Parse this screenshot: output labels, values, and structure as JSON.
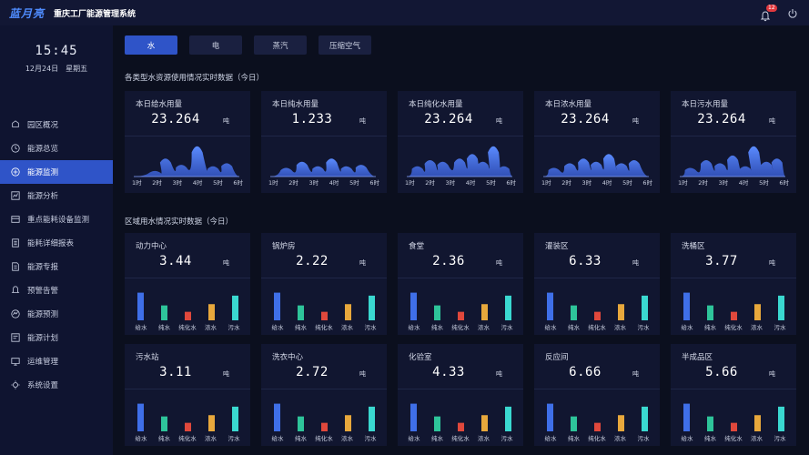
{
  "header": {
    "logo": "蓝月亮",
    "title": "重庆工厂能源管理系统",
    "notifications": "12",
    "icons": [
      "bell-icon",
      "power-icon"
    ]
  },
  "clock": {
    "time": "15:45",
    "date": "12月24日",
    "weekday": "星期五"
  },
  "sidebar": {
    "items": [
      {
        "label": "园区概况",
        "icon": "building-icon"
      },
      {
        "label": "能源总览",
        "icon": "overview-icon"
      },
      {
        "label": "能源监测",
        "icon": "monitor-icon",
        "active": true
      },
      {
        "label": "能源分析",
        "icon": "analysis-icon"
      },
      {
        "label": "重点能耗设备监测",
        "icon": "device-icon"
      },
      {
        "label": "能耗详细报表",
        "icon": "report-icon"
      },
      {
        "label": "能源专报",
        "icon": "document-icon"
      },
      {
        "label": "预警告警",
        "icon": "alarm-icon"
      },
      {
        "label": "能源预测",
        "icon": "forecast-icon"
      },
      {
        "label": "能源计划",
        "icon": "plan-icon"
      },
      {
        "label": "运维管理",
        "icon": "maintenance-icon"
      },
      {
        "label": "系统设置",
        "icon": "settings-icon"
      }
    ]
  },
  "tabs": [
    {
      "label": "水",
      "active": true
    },
    {
      "label": "电"
    },
    {
      "label": "蒸汽"
    },
    {
      "label": "压缩空气"
    }
  ],
  "section1": {
    "title": "各类型水资源使用情况实时数据（今日）"
  },
  "section2": {
    "title": "区域用水情况实时数据（今日）"
  },
  "unit": "吨",
  "hours": [
    "1时",
    "2时",
    "3时",
    "4时",
    "5时",
    "6时"
  ],
  "water_types": [
    "给水",
    "纯水",
    "纯化水",
    "浓水",
    "污水"
  ],
  "colors": {
    "accent": "#2f54c8",
    "bar_colors": [
      "#3f6fe8",
      "#2ec49a",
      "#e0483c",
      "#e8a83c",
      "#3ad8d0"
    ]
  },
  "type_cards": [
    {
      "label": "本日给水用量",
      "value": "23.264"
    },
    {
      "label": "本日纯水用量",
      "value": "1.233"
    },
    {
      "label": "本日纯化水用量",
      "value": "23.264"
    },
    {
      "label": "本日浓水用量",
      "value": "23.264"
    },
    {
      "label": "本日污水用量",
      "value": "23.264"
    }
  ],
  "area_cards": [
    {
      "label": "动力中心",
      "value": "3.44",
      "bars": [
        0.65,
        0.35,
        0.2,
        0.38,
        0.58
      ]
    },
    {
      "label": "锅炉房",
      "value": "2.22",
      "bars": [
        0.65,
        0.35,
        0.2,
        0.38,
        0.58
      ]
    },
    {
      "label": "食堂",
      "value": "2.36",
      "bars": [
        0.65,
        0.35,
        0.2,
        0.38,
        0.58
      ]
    },
    {
      "label": "灌装区",
      "value": "6.33",
      "bars": [
        0.65,
        0.35,
        0.2,
        0.38,
        0.58
      ]
    },
    {
      "label": "洗桶区",
      "value": "3.77",
      "bars": [
        0.65,
        0.35,
        0.2,
        0.38,
        0.58
      ]
    },
    {
      "label": "污水站",
      "value": "3.11",
      "bars": [
        0.65,
        0.35,
        0.2,
        0.38,
        0.58
      ]
    },
    {
      "label": "洗衣中心",
      "value": "2.72",
      "bars": [
        0.65,
        0.35,
        0.2,
        0.38,
        0.58
      ]
    },
    {
      "label": "化验室",
      "value": "4.33",
      "bars": [
        0.65,
        0.35,
        0.2,
        0.38,
        0.58
      ]
    },
    {
      "label": "反应间",
      "value": "6.66",
      "bars": [
        0.65,
        0.35,
        0.2,
        0.38,
        0.58
      ]
    },
    {
      "label": "半成品区",
      "value": "5.66",
      "bars": [
        0.65,
        0.35,
        0.2,
        0.38,
        0.58
      ]
    }
  ]
}
